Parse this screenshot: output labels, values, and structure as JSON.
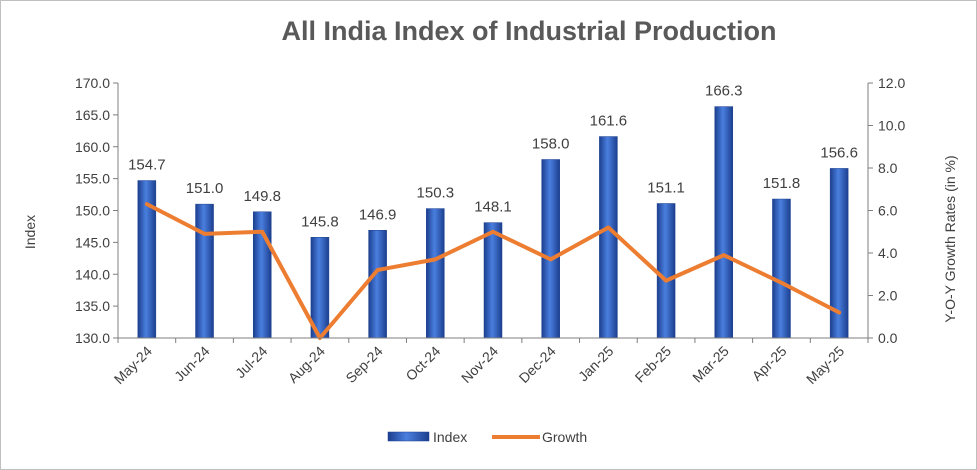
{
  "chart_data": {
    "type": "bar",
    "title": "All India Index of Industrial Production",
    "categories": [
      "May-24",
      "Jun-24",
      "Jul-24",
      "Aug-24",
      "Sep-24",
      "Oct-24",
      "Nov-24",
      "Dec-24",
      "Jan-25",
      "Feb-25",
      "Mar-25",
      "Apr-25",
      "May-25"
    ],
    "series": [
      {
        "name": "Index",
        "type": "bar",
        "axis": "left",
        "color": "#2f5fc4",
        "values": [
          154.7,
          151.0,
          149.8,
          145.8,
          146.9,
          150.3,
          148.1,
          158.0,
          161.6,
          151.1,
          166.3,
          151.8,
          156.6
        ],
        "data_labels": [
          "154.7",
          "151.0",
          "149.8",
          "145.8",
          "146.9",
          "150.3",
          "148.1",
          "158.0",
          "161.6",
          "151.1",
          "166.3",
          "151.8",
          "156.6"
        ]
      },
      {
        "name": "Growth",
        "type": "line",
        "axis": "right",
        "color": "#ed7d31",
        "values": [
          6.3,
          4.9,
          5.0,
          0.0,
          3.2,
          3.7,
          5.0,
          3.7,
          5.2,
          2.7,
          3.9,
          2.6,
          1.2
        ]
      }
    ],
    "ylabel": "Index",
    "y2label": "Y-O-Y Growth Rates (in %)",
    "ylim": [
      130,
      170
    ],
    "y2lim": [
      0,
      12
    ],
    "yticks": [
      "130.0",
      "135.0",
      "140.0",
      "145.0",
      "150.0",
      "155.0",
      "160.0",
      "165.0",
      "170.0"
    ],
    "y2ticks": [
      "0.0",
      "2.0",
      "4.0",
      "6.0",
      "8.0",
      "10.0",
      "12.0"
    ],
    "grid": false,
    "legend": "bottom"
  }
}
